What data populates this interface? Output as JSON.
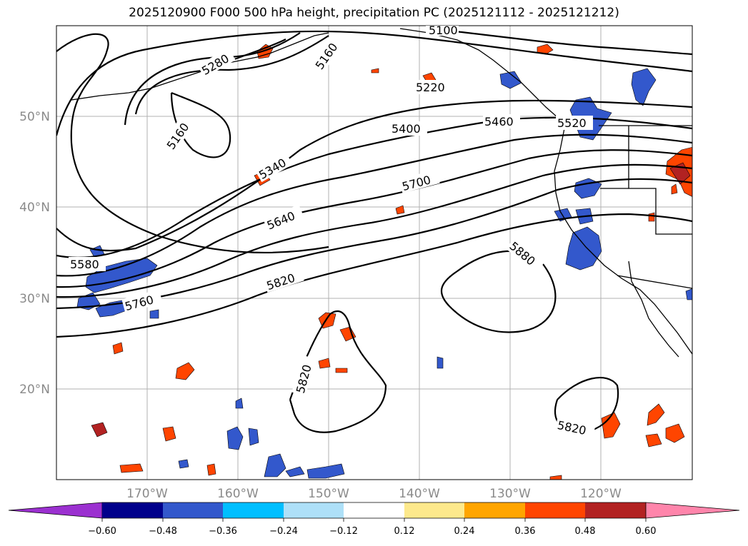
{
  "title": "2025120900 F000 500 hPa height, precipitation PC (2025121112 - 2025121212)",
  "latitude_labels": [
    "50°N",
    "40°N",
    "30°N",
    "20°N"
  ],
  "longitude_labels": [
    "170°W",
    "160°W",
    "150°W",
    "140°W",
    "130°W",
    "120°W"
  ],
  "contour_labels": [
    "5100",
    "5160",
    "5160",
    "5220",
    "5280",
    "5340",
    "5400",
    "5460",
    "5520",
    "5580",
    "5640",
    "5700",
    "5760",
    "5820",
    "5820",
    "5820",
    "5880"
  ],
  "colorbar": {
    "tick_labels": [
      "−0.60",
      "−0.48",
      "−0.36",
      "−0.24",
      "−0.12",
      "0.12",
      "0.24",
      "0.36",
      "0.48",
      "0.60"
    ],
    "colors": [
      "#9b30d0",
      "#00008b",
      "#3358cc",
      "#00bfff",
      "#aee0f8",
      "#ffffff",
      "#fde98c",
      "#ffa500",
      "#ff4500",
      "#b22222",
      "#ff85ab"
    ]
  }
}
